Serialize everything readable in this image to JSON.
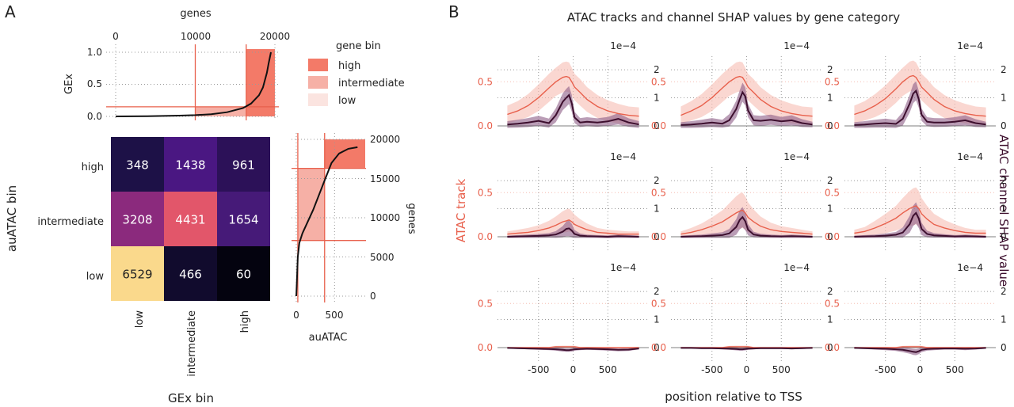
{
  "panel_labels": {
    "a": "A",
    "b": "B"
  },
  "colors": {
    "atac": "#e8604c",
    "atac_band": "#f6bdb2",
    "shap": "#3d0f2e",
    "shap_band": "#8c5b86",
    "bin_high": "#f37a68",
    "bin_intermediate": "#f6b0a6",
    "bin_low": "#fbe4e0",
    "grid": "#9a9a9a"
  },
  "chart_data": [
    {
      "id": "gex_curve",
      "type": "line",
      "xlabel": "genes",
      "ylabel": "GEx",
      "xticks": [
        "0",
        "10000",
        "20000"
      ],
      "yticks": [
        "0.0",
        "0.5",
        "1.0"
      ],
      "xlim": [
        0,
        20000
      ],
      "ylim": [
        0,
        1.0
      ],
      "x": [
        0,
        4000,
        8000,
        10000,
        12000,
        14000,
        16000,
        17000,
        18000,
        18500,
        19000,
        19200,
        19500
      ],
      "y": [
        0,
        0.004,
        0.012,
        0.02,
        0.035,
        0.065,
        0.13,
        0.2,
        0.33,
        0.45,
        0.68,
        0.82,
        1.0
      ],
      "thresholds": {
        "genes": [
          10000,
          16400
        ],
        "gex": 0.15
      },
      "legend": {
        "title": "gene bin",
        "entries": [
          {
            "label": "high",
            "color_key": "bin_high"
          },
          {
            "label": "intermediate",
            "color_key": "bin_intermediate"
          },
          {
            "label": "low",
            "color_key": "bin_low"
          }
        ]
      }
    },
    {
      "id": "heatmap",
      "type": "heatmap",
      "xlabel": "GEx bin",
      "ylabel": "auATAC bin",
      "x_categories": [
        "low",
        "intermediate",
        "high"
      ],
      "y_categories": [
        "high",
        "intermediate",
        "low"
      ],
      "values": [
        [
          348,
          1438,
          961
        ],
        [
          3208,
          4431,
          1654
        ],
        [
          6529,
          466,
          60
        ]
      ],
      "colors": [
        [
          "#1d1147",
          "#4a1782",
          "#2c1158"
        ],
        [
          "#8b2a7d",
          "#e2566a",
          "#461a78"
        ],
        [
          "#fad98c",
          "#110b2d",
          "#04030f"
        ]
      ]
    },
    {
      "id": "auatac_curve",
      "type": "line",
      "xlabel": "auATAC",
      "ylabel": "genes",
      "xticks": [
        "0",
        "500"
      ],
      "yticks": [
        "0",
        "5000",
        "10000",
        "15000",
        "20000"
      ],
      "xlim": [
        0,
        900
      ],
      "ylim": [
        0,
        20000
      ],
      "x": [
        0,
        10,
        20,
        40,
        80,
        150,
        220,
        300,
        380,
        460,
        560,
        680,
        800
      ],
      "y": [
        0,
        2500,
        5000,
        6800,
        8000,
        9500,
        11000,
        13000,
        15000,
        17000,
        18200,
        18800,
        19000
      ],
      "thresholds": {
        "auatac": [
          20,
          370
        ],
        "genes": [
          7100,
          16300
        ]
      }
    },
    {
      "id": "atac_tracks",
      "type": "line",
      "title": "ATAC tracks and channel SHAP values by gene category",
      "xlabel": "position relative to TSS",
      "ylabel_left": "ATAC track",
      "ylabel_right": "ATAC channel SHAP value",
      "xticks": [
        "-500",
        "0",
        "500"
      ],
      "yticks_left": [
        "0.0",
        "0.5"
      ],
      "yticks_right": [
        "0",
        "1",
        "2"
      ],
      "right_multiplier": "1e−4",
      "xlim": [
        -1000,
        1000
      ],
      "ylim_left": [
        0,
        0.7
      ],
      "ylim_right": [
        0,
        0.00022
      ],
      "grid": true,
      "x": [
        -950,
        -800,
        -650,
        -500,
        -350,
        -250,
        -150,
        -100,
        -60,
        -20,
        20,
        100,
        200,
        350,
        500,
        650,
        800,
        950
      ],
      "panels": [
        {
          "row": "high",
          "col": "high",
          "atac": [
            0.13,
            0.17,
            0.23,
            0.32,
            0.43,
            0.5,
            0.55,
            0.56,
            0.55,
            0.5,
            0.44,
            0.38,
            0.3,
            0.22,
            0.17,
            0.14,
            0.12,
            0.11
          ],
          "atac_sd": [
            0.1,
            0.11,
            0.13,
            0.15,
            0.16,
            0.16,
            0.17,
            0.17,
            0.17,
            0.16,
            0.15,
            0.15,
            0.14,
            0.13,
            0.12,
            0.11,
            0.1,
            0.1
          ],
          "shap": [
            0.05,
            0.08,
            0.12,
            0.18,
            0.1,
            0.38,
            0.86,
            1.0,
            1.1,
            0.8,
            0.3,
            0.12,
            0.15,
            0.12,
            0.16,
            0.25,
            0.12,
            0.05
          ],
          "shap_sd": [
            0.12,
            0.14,
            0.16,
            0.18,
            0.16,
            0.25,
            0.3,
            0.32,
            0.32,
            0.3,
            0.2,
            0.16,
            0.16,
            0.15,
            0.16,
            0.2,
            0.15,
            0.12
          ]
        },
        {
          "row": "high",
          "col": "intermediate",
          "atac": [
            0.12,
            0.17,
            0.23,
            0.32,
            0.43,
            0.5,
            0.55,
            0.56,
            0.55,
            0.5,
            0.44,
            0.38,
            0.3,
            0.22,
            0.17,
            0.14,
            0.12,
            0.11
          ],
          "atac_sd": [
            0.1,
            0.11,
            0.13,
            0.15,
            0.16,
            0.16,
            0.17,
            0.17,
            0.17,
            0.16,
            0.15,
            0.15,
            0.14,
            0.13,
            0.12,
            0.11,
            0.1,
            0.1
          ],
          "shap": [
            0.03,
            0.05,
            0.08,
            0.12,
            0.08,
            0.2,
            0.6,
            0.95,
            1.2,
            1.05,
            0.55,
            0.2,
            0.18,
            0.22,
            0.16,
            0.2,
            0.1,
            0.05
          ],
          "shap_sd": [
            0.1,
            0.12,
            0.14,
            0.16,
            0.14,
            0.22,
            0.3,
            0.32,
            0.34,
            0.32,
            0.24,
            0.18,
            0.18,
            0.18,
            0.16,
            0.18,
            0.14,
            0.1
          ]
        },
        {
          "row": "high",
          "col": "low",
          "atac": [
            0.13,
            0.17,
            0.23,
            0.31,
            0.42,
            0.5,
            0.56,
            0.57,
            0.55,
            0.5,
            0.44,
            0.38,
            0.3,
            0.22,
            0.17,
            0.14,
            0.12,
            0.11
          ],
          "atac_sd": [
            0.1,
            0.11,
            0.13,
            0.15,
            0.16,
            0.16,
            0.17,
            0.17,
            0.17,
            0.16,
            0.15,
            0.15,
            0.14,
            0.13,
            0.12,
            0.11,
            0.1,
            0.1
          ],
          "shap": [
            0.03,
            0.05,
            0.08,
            0.1,
            0.07,
            0.25,
            0.8,
            1.15,
            1.25,
            0.95,
            0.4,
            0.15,
            0.12,
            0.12,
            0.15,
            0.2,
            0.1,
            0.05
          ],
          "shap_sd": [
            0.1,
            0.12,
            0.14,
            0.16,
            0.14,
            0.24,
            0.32,
            0.34,
            0.34,
            0.3,
            0.22,
            0.16,
            0.16,
            0.15,
            0.16,
            0.18,
            0.14,
            0.1
          ]
        },
        {
          "row": "intermediate",
          "col": "high",
          "atac": [
            0.03,
            0.04,
            0.05,
            0.07,
            0.1,
            0.13,
            0.17,
            0.18,
            0.19,
            0.17,
            0.14,
            0.11,
            0.08,
            0.05,
            0.04,
            0.03,
            0.03,
            0.03
          ],
          "atac_sd": [
            0.03,
            0.04,
            0.05,
            0.06,
            0.08,
            0.1,
            0.12,
            0.13,
            0.13,
            0.12,
            0.11,
            0.09,
            0.07,
            0.05,
            0.04,
            0.04,
            0.03,
            0.03
          ],
          "shap": [
            0.0,
            0.01,
            0.02,
            0.03,
            0.05,
            0.08,
            0.18,
            0.28,
            0.3,
            0.22,
            0.1,
            0.04,
            0.02,
            0.01,
            0.0,
            0.02,
            0.01,
            0.0
          ],
          "shap_sd": [
            0.04,
            0.05,
            0.06,
            0.07,
            0.08,
            0.12,
            0.2,
            0.26,
            0.28,
            0.24,
            0.14,
            0.08,
            0.06,
            0.05,
            0.05,
            0.06,
            0.05,
            0.04
          ]
        },
        {
          "row": "intermediate",
          "col": "intermediate",
          "atac": [
            0.03,
            0.05,
            0.08,
            0.12,
            0.17,
            0.22,
            0.27,
            0.29,
            0.3,
            0.27,
            0.22,
            0.17,
            0.12,
            0.08,
            0.06,
            0.05,
            0.04,
            0.03
          ],
          "atac_sd": [
            0.03,
            0.05,
            0.07,
            0.1,
            0.13,
            0.16,
            0.19,
            0.2,
            0.2,
            0.19,
            0.17,
            0.14,
            0.11,
            0.08,
            0.06,
            0.05,
            0.04,
            0.03
          ],
          "shap": [
            0.0,
            0.01,
            0.02,
            0.04,
            0.06,
            0.12,
            0.35,
            0.6,
            0.7,
            0.55,
            0.25,
            0.08,
            0.04,
            0.02,
            0.01,
            0.02,
            0.01,
            0.0
          ],
          "shap_sd": [
            0.04,
            0.05,
            0.06,
            0.08,
            0.1,
            0.16,
            0.28,
            0.34,
            0.36,
            0.32,
            0.2,
            0.1,
            0.07,
            0.06,
            0.05,
            0.06,
            0.05,
            0.04
          ]
        },
        {
          "row": "intermediate",
          "col": "low",
          "atac": [
            0.04,
            0.06,
            0.1,
            0.15,
            0.21,
            0.27,
            0.32,
            0.34,
            0.35,
            0.32,
            0.26,
            0.2,
            0.14,
            0.1,
            0.07,
            0.05,
            0.04,
            0.04
          ],
          "atac_sd": [
            0.04,
            0.05,
            0.08,
            0.11,
            0.14,
            0.17,
            0.2,
            0.21,
            0.21,
            0.2,
            0.18,
            0.15,
            0.12,
            0.09,
            0.07,
            0.05,
            0.04,
            0.04
          ],
          "shap": [
            0.0,
            0.01,
            0.02,
            0.04,
            0.07,
            0.15,
            0.45,
            0.75,
            0.85,
            0.65,
            0.28,
            0.1,
            0.05,
            0.03,
            0.01,
            0.02,
            0.01,
            0.0
          ],
          "shap_sd": [
            0.04,
            0.05,
            0.06,
            0.08,
            0.1,
            0.18,
            0.3,
            0.36,
            0.38,
            0.34,
            0.22,
            0.12,
            0.08,
            0.06,
            0.05,
            0.06,
            0.05,
            0.04
          ]
        },
        {
          "row": "low",
          "col": "high",
          "atac": [
            0.0,
            0.0,
            0.0,
            0.0,
            0.0,
            0.01,
            0.01,
            0.01,
            0.01,
            0.01,
            0.01,
            0.0,
            0.0,
            0.0,
            0.0,
            0.0,
            0.0,
            0.0
          ],
          "atac_sd": [
            0.005,
            0.005,
            0.005,
            0.006,
            0.008,
            0.01,
            0.012,
            0.012,
            0.012,
            0.012,
            0.01,
            0.008,
            0.006,
            0.005,
            0.005,
            0.005,
            0.005,
            0.005
          ],
          "shap": [
            -0.01,
            -0.02,
            -0.03,
            -0.04,
            -0.05,
            -0.06,
            -0.08,
            -0.09,
            -0.09,
            -0.08,
            -0.06,
            -0.05,
            -0.04,
            -0.05,
            -0.06,
            -0.08,
            -0.07,
            -0.03
          ],
          "shap_sd": [
            0.02,
            0.03,
            0.03,
            0.04,
            0.04,
            0.05,
            0.06,
            0.06,
            0.06,
            0.06,
            0.05,
            0.04,
            0.04,
            0.04,
            0.05,
            0.05,
            0.05,
            0.03
          ]
        },
        {
          "row": "low",
          "col": "intermediate",
          "atac": [
            0.0,
            0.0,
            0.0,
            0.0,
            0.0,
            0.01,
            0.01,
            0.01,
            0.01,
            0.01,
            0.01,
            0.0,
            0.0,
            0.0,
            0.0,
            0.0,
            0.0,
            0.0
          ],
          "atac_sd": [
            0.005,
            0.005,
            0.005,
            0.006,
            0.008,
            0.01,
            0.012,
            0.012,
            0.012,
            0.012,
            0.01,
            0.008,
            0.006,
            0.005,
            0.005,
            0.005,
            0.005,
            0.005
          ],
          "shap": [
            -0.01,
            -0.01,
            -0.02,
            -0.02,
            -0.03,
            -0.04,
            -0.05,
            -0.06,
            -0.06,
            -0.05,
            -0.04,
            -0.03,
            -0.02,
            -0.02,
            -0.02,
            -0.03,
            -0.02,
            -0.01
          ],
          "shap_sd": [
            0.02,
            0.02,
            0.03,
            0.03,
            0.03,
            0.04,
            0.05,
            0.05,
            0.05,
            0.05,
            0.04,
            0.03,
            0.03,
            0.03,
            0.03,
            0.03,
            0.03,
            0.02
          ]
        },
        {
          "row": "low",
          "col": "low",
          "atac": [
            0.0,
            0.0,
            0.0,
            0.0,
            0.0,
            0.01,
            0.01,
            0.01,
            0.01,
            0.01,
            0.01,
            0.0,
            0.0,
            0.0,
            0.0,
            0.0,
            0.0,
            0.0
          ],
          "atac_sd": [
            0.005,
            0.005,
            0.005,
            0.006,
            0.008,
            0.01,
            0.012,
            0.012,
            0.012,
            0.012,
            0.01,
            0.008,
            0.006,
            0.005,
            0.005,
            0.005,
            0.005,
            0.005
          ],
          "shap": [
            -0.01,
            -0.02,
            -0.03,
            -0.04,
            -0.06,
            -0.08,
            -0.12,
            -0.15,
            -0.16,
            -0.13,
            -0.08,
            -0.05,
            -0.04,
            -0.03,
            -0.03,
            -0.04,
            -0.03,
            -0.01
          ],
          "shap_sd": [
            0.03,
            0.03,
            0.04,
            0.05,
            0.06,
            0.08,
            0.1,
            0.11,
            0.11,
            0.1,
            0.08,
            0.06,
            0.05,
            0.04,
            0.04,
            0.05,
            0.04,
            0.03
          ]
        }
      ]
    }
  ]
}
